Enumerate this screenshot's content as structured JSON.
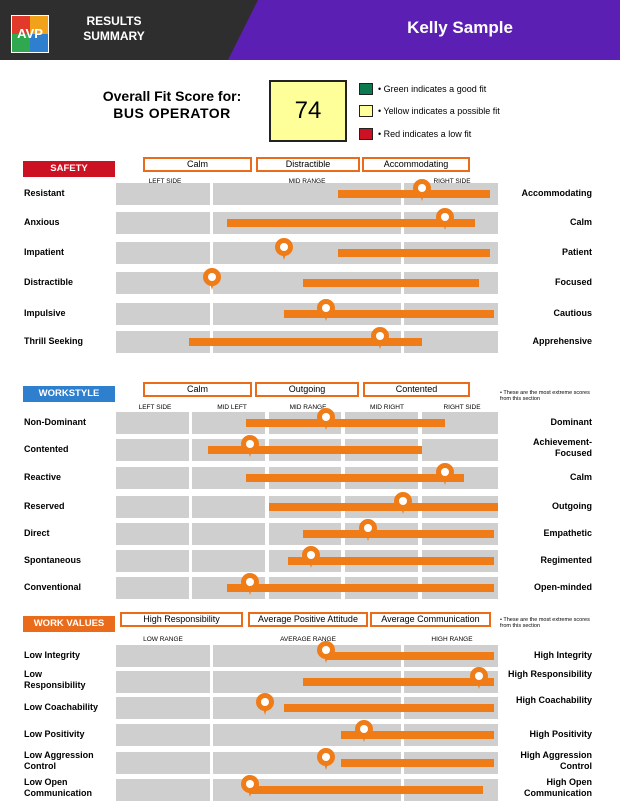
{
  "header": {
    "logo_text": "AVP",
    "title_line1": "RESULTS",
    "title_line2": "SUMMARY",
    "candidate_name": "Kelly Sample",
    "colors": {
      "dark": "#2e2e2e",
      "purple": "#5b1fb3"
    }
  },
  "fit": {
    "label_line1": "Overall Fit Score for:",
    "job_title": "BUS OPERATOR",
    "score": "74",
    "legend": [
      {
        "color": "#0c7a4f",
        "text": "• Green indicates a good fit"
      },
      {
        "color": "#ffff99",
        "text": "• Yellow indicates a possible fit"
      },
      {
        "color": "#cc1122",
        "text": "• Red indicates a low fit"
      }
    ]
  },
  "sections": [
    {
      "id": "safety",
      "tag": "SAFETY",
      "tag_color": "#cc1122",
      "top_traits": [
        "Calm",
        "Distractible",
        "Accommodating"
      ],
      "column_labels": [
        "LEFT SIDE",
        "MID RANGE",
        "RIGHT SIDE"
      ],
      "note": "",
      "rows": [
        {
          "left": "Resistant",
          "right": "Accommodating",
          "bar": [
            0.58,
            0.98
          ],
          "marker": 0.8
        },
        {
          "left": "Anxious",
          "right": "Calm",
          "bar": [
            0.29,
            0.94
          ],
          "marker": 0.86
        },
        {
          "left": "Impatient",
          "right": "Patient",
          "bar": [
            0.58,
            0.98
          ],
          "marker": 0.44
        },
        {
          "left": "Distractible",
          "right": "Focused",
          "bar": [
            0.49,
            0.95
          ],
          "marker": 0.25
        },
        {
          "left": "Impulsive",
          "right": "Cautious",
          "bar": [
            0.44,
            0.99
          ],
          "marker": 0.55
        },
        {
          "left": "Thrill Seeking",
          "right": "Apprehensive",
          "bar": [
            0.19,
            0.8
          ],
          "marker": 0.69
        }
      ]
    },
    {
      "id": "workstyle",
      "tag": "WORKSTYLE",
      "tag_color": "#2f7fcf",
      "top_traits": [
        "Calm",
        "Outgoing",
        "Contented"
      ],
      "column_labels": [
        "LEFT SIDE",
        "MID LEFT",
        "MID RANGE",
        "MID RIGHT",
        "RIGHT SIDE"
      ],
      "note": "• These are the most extreme scores from this section",
      "rows": [
        {
          "left": "Non-Dominant",
          "right": "Dominant",
          "bar": [
            0.34,
            0.86
          ],
          "marker": 0.55
        },
        {
          "left": "Contented",
          "right": "Achievement-Focused",
          "bar": [
            0.24,
            0.8
          ],
          "marker": 0.35
        },
        {
          "left": "Reactive",
          "right": "Calm",
          "bar": [
            0.34,
            0.91
          ],
          "marker": 0.86
        },
        {
          "left": "Reserved",
          "right": "Outgoing",
          "bar": [
            0.4,
            1.0
          ],
          "marker": 0.75
        },
        {
          "left": "Direct",
          "right": "Empathetic",
          "bar": [
            0.49,
            0.99
          ],
          "marker": 0.66
        },
        {
          "left": "Spontaneous",
          "right": "Regimented",
          "bar": [
            0.45,
            0.99
          ],
          "marker": 0.51
        },
        {
          "left": "Conventional",
          "right": "Open-minded",
          "bar": [
            0.29,
            0.99
          ],
          "marker": 0.35
        }
      ]
    },
    {
      "id": "workvalues",
      "tag": "WORK VALUES",
      "tag_color": "#ea6b1a",
      "top_traits": [
        "High Responsibility",
        "Average Positive Attitude",
        "Average Communication"
      ],
      "column_labels": [
        "LOW RANGE",
        "AVERAGE RANGE",
        "HIGH RANGE"
      ],
      "note": "• These are the most extreme scores from this section",
      "rows": [
        {
          "left": "Low Integrity",
          "right": "High Integrity",
          "bar": [
            0.55,
            0.99
          ],
          "marker": 0.55
        },
        {
          "left": "Low Responsibility",
          "right": "High Responsibility",
          "bar": [
            0.49,
            0.99
          ],
          "marker": 0.95
        },
        {
          "left": "Low Coachability",
          "right": "High Coachability",
          "bar": [
            0.44,
            0.99
          ],
          "marker": 0.39
        },
        {
          "left": "Low Positivity",
          "right": "High Positivity",
          "bar": [
            0.59,
            0.99
          ],
          "marker": 0.65
        },
        {
          "left": "Low Aggression Control",
          "right": "High Aggression Control",
          "bar": [
            0.59,
            0.99
          ],
          "marker": 0.55
        },
        {
          "left": "Low Open Communication",
          "right": "High Open Communication",
          "bar": [
            0.35,
            0.96
          ],
          "marker": 0.35
        }
      ]
    }
  ]
}
